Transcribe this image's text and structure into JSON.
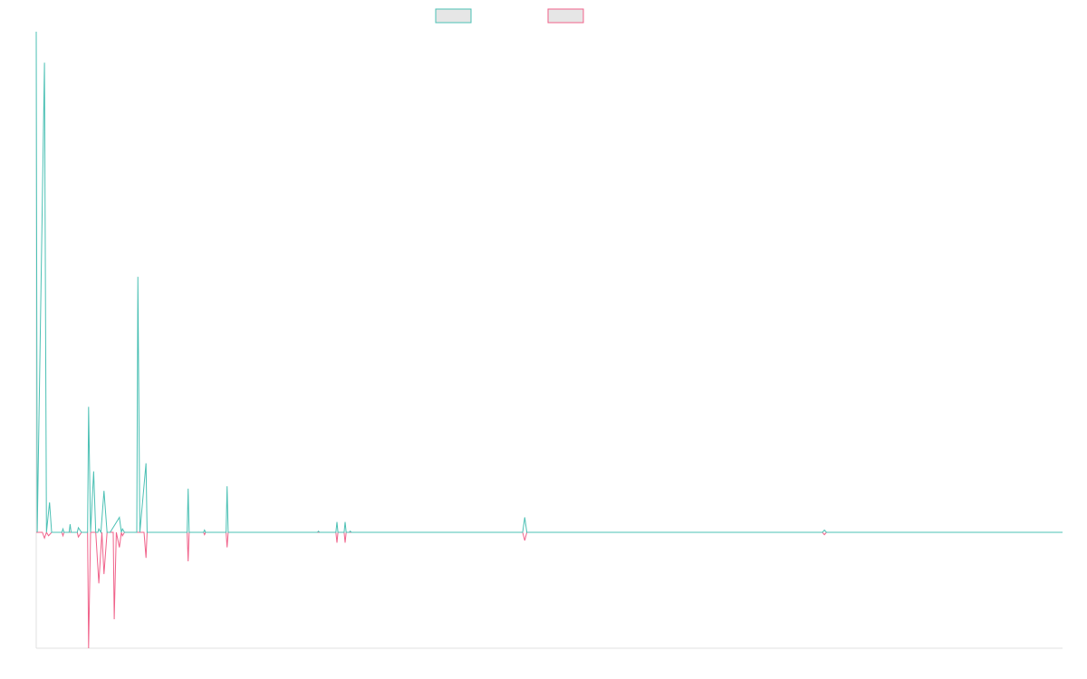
{
  "chart_data": {
    "type": "line",
    "title": "",
    "xlabel": "",
    "ylabel": "",
    "grid": false,
    "legend_position": "top-center",
    "x_range": [
      0,
      1000
    ],
    "ylim": [
      -100,
      435
    ],
    "colors": {
      "series_1": "#4bc0b4",
      "series_2": "#f0628a",
      "swatch_fill": "#e6e6e6",
      "axis": "#e0e0e0"
    },
    "series": [
      {
        "color_key": "series_1",
        "points": [
          [
            0,
            435
          ],
          [
            1,
            0
          ],
          [
            8,
            408
          ],
          [
            10,
            0
          ],
          [
            13,
            26
          ],
          [
            15,
            0
          ],
          [
            25,
            0
          ],
          [
            26,
            3
          ],
          [
            27,
            0
          ],
          [
            32,
            0
          ],
          [
            33,
            7
          ],
          [
            34,
            0
          ],
          [
            40,
            0
          ],
          [
            41,
            4
          ],
          [
            44,
            0
          ],
          [
            50,
            0
          ],
          [
            51,
            109
          ],
          [
            53,
            0
          ],
          [
            56,
            53
          ],
          [
            58,
            0
          ],
          [
            60,
            0
          ],
          [
            61,
            3
          ],
          [
            63,
            0
          ],
          [
            66,
            36
          ],
          [
            69,
            0
          ],
          [
            72,
            0
          ],
          [
            81,
            13
          ],
          [
            83,
            0
          ],
          [
            84,
            3
          ],
          [
            86,
            0
          ],
          [
            98,
            0
          ],
          [
            99,
            222
          ],
          [
            101,
            0
          ],
          [
            107,
            60
          ],
          [
            108,
            0
          ],
          [
            147,
            0
          ],
          [
            148,
            38
          ],
          [
            149,
            0
          ],
          [
            163,
            0
          ],
          [
            164,
            2
          ],
          [
            165,
            0
          ],
          [
            185,
            0
          ],
          [
            186,
            40
          ],
          [
            187,
            0
          ],
          [
            274,
            0
          ],
          [
            275,
            1
          ],
          [
            276,
            0
          ],
          [
            292,
            0
          ],
          [
            293,
            9
          ],
          [
            294,
            0
          ],
          [
            300,
            0
          ],
          [
            301,
            9
          ],
          [
            302,
            0
          ],
          [
            305,
            0
          ],
          [
            306,
            1
          ],
          [
            307,
            0
          ],
          [
            474,
            0
          ],
          [
            476,
            13
          ],
          [
            478,
            0
          ],
          [
            766,
            0
          ],
          [
            768,
            2
          ],
          [
            770,
            0
          ],
          [
            1000,
            0
          ]
        ]
      },
      {
        "color_key": "series_2",
        "points": [
          [
            0,
            0
          ],
          [
            6,
            0
          ],
          [
            8,
            -5
          ],
          [
            10,
            0
          ],
          [
            12,
            -3
          ],
          [
            15,
            0
          ],
          [
            25,
            0
          ],
          [
            26,
            -3
          ],
          [
            27,
            0
          ],
          [
            40,
            0
          ],
          [
            41,
            -4
          ],
          [
            44,
            0
          ],
          [
            50,
            0
          ],
          [
            51,
            -100
          ],
          [
            53,
            0
          ],
          [
            58,
            0
          ],
          [
            61,
            -44
          ],
          [
            64,
            0
          ],
          [
            66,
            -36
          ],
          [
            69,
            0
          ],
          [
            75,
            0
          ],
          [
            76,
            -75
          ],
          [
            78,
            0
          ],
          [
            81,
            -13
          ],
          [
            83,
            0
          ],
          [
            84,
            -3
          ],
          [
            86,
            0
          ],
          [
            105,
            0
          ],
          [
            107,
            -22
          ],
          [
            108,
            0
          ],
          [
            147,
            0
          ],
          [
            148,
            -25
          ],
          [
            149,
            0
          ],
          [
            163,
            0
          ],
          [
            164,
            -2
          ],
          [
            165,
            0
          ],
          [
            185,
            0
          ],
          [
            186,
            -13
          ],
          [
            187,
            0
          ],
          [
            292,
            0
          ],
          [
            293,
            -9
          ],
          [
            294,
            0
          ],
          [
            300,
            0
          ],
          [
            301,
            -9
          ],
          [
            302,
            0
          ],
          [
            474,
            0
          ],
          [
            476,
            -7
          ],
          [
            478,
            0
          ],
          [
            766,
            0
          ],
          [
            768,
            -2
          ],
          [
            770,
            0
          ],
          [
            1000,
            0
          ]
        ]
      }
    ]
  }
}
